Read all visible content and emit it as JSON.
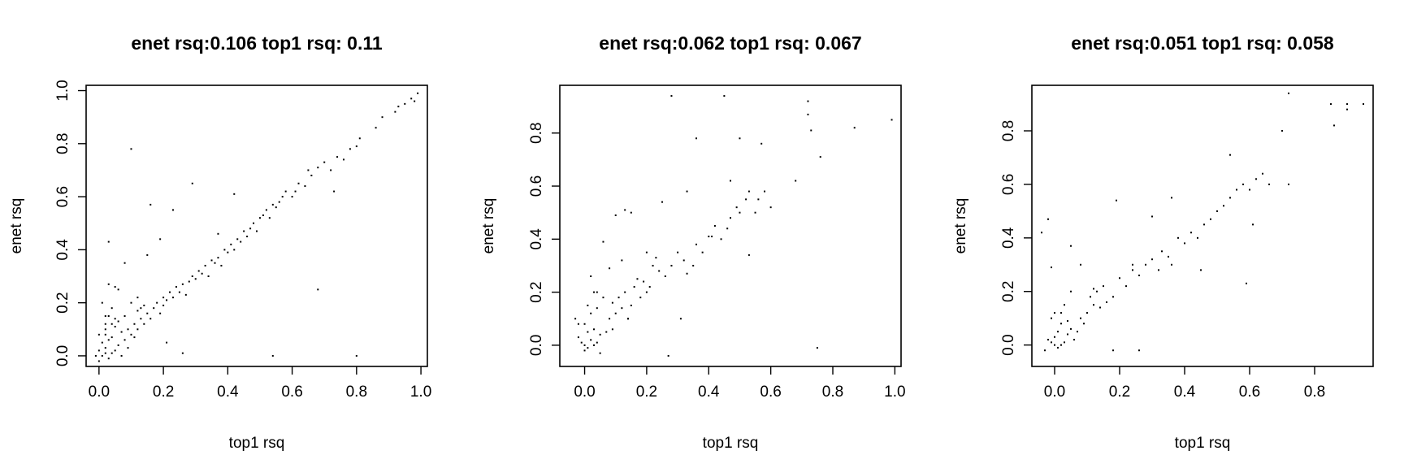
{
  "chart_data": [
    {
      "type": "scatter",
      "title": "enet rsq:0.106 top1 rsq: 0.11",
      "xlabel": "top1 rsq",
      "ylabel": "enet rsq",
      "xlim": [
        -0.04,
        1.02
      ],
      "ylim": [
        -0.04,
        1.02
      ],
      "xticks": [
        0.0,
        0.2,
        0.4,
        0.6,
        0.8,
        1.0
      ],
      "yticks": [
        0.0,
        0.2,
        0.4,
        0.6,
        0.8,
        1.0
      ],
      "xtick_labels": [
        "0.0",
        "0.2",
        "0.4",
        "0.6",
        "0.8",
        "1.0"
      ],
      "ytick_labels": [
        "0.0",
        "0.2",
        "0.4",
        "0.6",
        "0.8",
        "1.0"
      ],
      "grid": false,
      "series": [
        {
          "x": [
            0.01,
            0.02,
            0.0,
            0.03,
            -0.01,
            0.02,
            0.04,
            0.01,
            0.05,
            0.03,
            0.0,
            0.02,
            0.06,
            0.04,
            0.02,
            0.03,
            0.07,
            0.05,
            0.08,
            0.06,
            0.04,
            0.09,
            0.1,
            0.08,
            0.11,
            0.12,
            0.1,
            0.13,
            0.14,
            0.12,
            0.15,
            0.16,
            0.14,
            0.17,
            0.18,
            0.2,
            0.19,
            0.21,
            0.22,
            0.2,
            0.23,
            0.24,
            0.25,
            0.26,
            0.27,
            0.28,
            0.29,
            0.3,
            0.31,
            0.32,
            0.33,
            0.34,
            0.35,
            0.36,
            0.37,
            0.38,
            0.39,
            0.4,
            0.41,
            0.42,
            0.43,
            0.44,
            0.45,
            0.46,
            0.47,
            0.48,
            0.49,
            0.5,
            0.51,
            0.52,
            0.53,
            0.54,
            0.55,
            0.56,
            0.57,
            0.58,
            0.6,
            0.61,
            0.62,
            0.64,
            0.65,
            0.66,
            0.68,
            0.7,
            0.72,
            0.74,
            0.76,
            0.78,
            0.8,
            0.81,
            0.86,
            0.88,
            0.92,
            0.93,
            0.95,
            0.97,
            0.98,
            0.99,
            0.1,
            0.03,
            0.16,
            0.29,
            0.68,
            0.54,
            0.8,
            0.73,
            0.42,
            0.23,
            0.19,
            0.37,
            0.05,
            0.08,
            0.12,
            0.15,
            0.21,
            0.26,
            0.02,
            0.07,
            0.01,
            0.0,
            0.04,
            0.06,
            0.09,
            0.11,
            0.13,
            0.02,
            0.03,
            0.05
          ],
          "y": [
            0.0,
            0.01,
            0.02,
            -0.01,
            0.0,
            0.03,
            0.01,
            0.05,
            0.02,
            0.06,
            0.08,
            0.1,
            0.04,
            0.07,
            0.12,
            0.15,
            0.09,
            0.11,
            0.06,
            0.13,
            0.18,
            0.1,
            0.08,
            0.15,
            0.12,
            0.1,
            0.2,
            0.14,
            0.12,
            0.17,
            0.16,
            0.14,
            0.19,
            0.18,
            0.2,
            0.22,
            0.16,
            0.21,
            0.24,
            0.19,
            0.22,
            0.26,
            0.24,
            0.27,
            0.23,
            0.28,
            0.3,
            0.29,
            0.32,
            0.31,
            0.34,
            0.3,
            0.36,
            0.35,
            0.37,
            0.34,
            0.4,
            0.39,
            0.42,
            0.4,
            0.44,
            0.43,
            0.47,
            0.45,
            0.48,
            0.5,
            0.47,
            0.52,
            0.53,
            0.55,
            0.52,
            0.57,
            0.56,
            0.58,
            0.6,
            0.62,
            0.6,
            0.62,
            0.65,
            0.64,
            0.7,
            0.68,
            0.71,
            0.73,
            0.7,
            0.75,
            0.74,
            0.78,
            0.79,
            0.82,
            0.86,
            0.9,
            0.92,
            0.94,
            0.95,
            0.97,
            0.96,
            0.99,
            0.78,
            0.43,
            0.57,
            0.65,
            0.25,
            0.0,
            0.0,
            0.62,
            0.61,
            0.55,
            0.44,
            0.46,
            0.26,
            0.35,
            0.22,
            0.38,
            0.05,
            0.01,
            0.15,
            0.0,
            0.2,
            -0.02,
            0.12,
            0.25,
            0.03,
            0.07,
            0.18,
            0.08,
            0.27,
            0.14
          ]
        }
      ]
    },
    {
      "type": "scatter",
      "title": "enet rsq:0.062 top1 rsq: 0.067",
      "xlabel": "top1 rsq",
      "ylabel": "enet rsq",
      "xlim": [
        -0.08,
        1.02
      ],
      "ylim": [
        -0.08,
        0.98
      ],
      "xticks": [
        0.0,
        0.2,
        0.4,
        0.6,
        0.8,
        1.0
      ],
      "yticks": [
        0.0,
        0.2,
        0.4,
        0.6,
        0.8
      ],
      "xtick_labels": [
        "0.0",
        "0.2",
        "0.4",
        "0.6",
        "0.8",
        "1.0"
      ],
      "ytick_labels": [
        "0.0",
        "0.2",
        "0.4",
        "0.6",
        "0.8"
      ],
      "grid": false,
      "series": [
        {
          "x": [
            0.0,
            0.01,
            -0.01,
            0.02,
            0.0,
            0.03,
            -0.02,
            0.01,
            0.04,
            0.0,
            -0.03,
            0.02,
            0.05,
            0.01,
            0.03,
            0.06,
            0.08,
            0.04,
            0.07,
            0.1,
            0.09,
            0.12,
            0.11,
            0.14,
            0.13,
            0.16,
            0.15,
            0.18,
            0.17,
            0.2,
            0.19,
            0.22,
            0.21,
            0.24,
            0.23,
            0.26,
            0.28,
            0.3,
            0.32,
            0.33,
            0.35,
            0.36,
            0.38,
            0.4,
            0.42,
            0.44,
            0.46,
            0.47,
            0.49,
            0.5,
            0.52,
            0.53,
            0.55,
            0.56,
            0.58,
            0.6,
            0.28,
            0.45,
            0.72,
            0.72,
            0.99,
            0.87,
            0.73,
            0.36,
            0.5,
            0.57,
            0.76,
            0.68,
            0.47,
            0.41,
            0.53,
            0.1,
            0.13,
            0.15,
            0.33,
            0.06,
            0.02,
            0.25,
            0.31,
            0.75,
            0.12,
            0.05,
            0.03,
            0.08,
            0.2,
            0.27,
            -0.02,
            0.04,
            0.09,
            0.14
          ],
          "y": [
            0.0,
            -0.01,
            0.01,
            0.02,
            -0.02,
            0.0,
            0.03,
            0.05,
            0.01,
            0.08,
            0.1,
            0.12,
            0.04,
            0.15,
            0.06,
            0.18,
            0.1,
            0.2,
            0.05,
            0.12,
            0.16,
            0.14,
            0.18,
            0.1,
            0.2,
            0.22,
            0.15,
            0.18,
            0.25,
            0.2,
            0.24,
            0.3,
            0.22,
            0.28,
            0.33,
            0.26,
            0.3,
            0.35,
            0.32,
            0.27,
            0.3,
            0.38,
            0.35,
            0.41,
            0.45,
            0.4,
            0.44,
            0.48,
            0.52,
            0.5,
            0.55,
            0.58,
            0.5,
            0.55,
            0.58,
            0.52,
            0.94,
            0.94,
            0.92,
            0.87,
            0.85,
            0.82,
            0.81,
            0.78,
            0.78,
            0.76,
            0.71,
            0.62,
            0.62,
            0.41,
            0.34,
            0.49,
            0.51,
            0.5,
            0.58,
            0.39,
            0.26,
            0.54,
            0.1,
            -0.01,
            0.32,
            -0.03,
            0.2,
            0.29,
            0.35,
            -0.04,
            0.08,
            0.14,
            0.06,
            0.1
          ]
        }
      ]
    },
    {
      "type": "scatter",
      "title": "enet rsq:0.051 top1 rsq: 0.058",
      "xlabel": "top1 rsq",
      "ylabel": "enet rsq",
      "xlim": [
        -0.07,
        0.98
      ],
      "ylim": [
        -0.08,
        0.97
      ],
      "xticks": [
        0.0,
        0.2,
        0.4,
        0.6,
        0.8
      ],
      "yticks": [
        0.0,
        0.2,
        0.4,
        0.6,
        0.8
      ],
      "xtick_labels": [
        "0.0",
        "0.2",
        "0.4",
        "0.6",
        "0.8"
      ],
      "ytick_labels": [
        "0.0",
        "0.2",
        "0.4",
        "0.6",
        "0.8"
      ],
      "grid": false,
      "series": [
        {
          "x": [
            0.0,
            -0.01,
            0.01,
            -0.02,
            0.02,
            0.0,
            -0.03,
            0.01,
            0.03,
            0.02,
            -0.01,
            0.04,
            0.05,
            0.0,
            0.06,
            0.03,
            0.07,
            0.08,
            0.05,
            0.1,
            0.09,
            0.12,
            0.11,
            0.14,
            0.13,
            0.16,
            0.15,
            0.18,
            0.2,
            0.22,
            0.24,
            0.26,
            0.28,
            0.3,
            0.32,
            0.33,
            0.35,
            0.36,
            0.38,
            0.4,
            0.42,
            0.44,
            0.46,
            0.48,
            0.5,
            0.52,
            0.54,
            0.56,
            0.58,
            0.6,
            0.62,
            0.64,
            0.66,
            0.7,
            0.72,
            0.72,
            0.85,
            0.86,
            0.9,
            0.9,
            0.95,
            0.54,
            0.59,
            0.61,
            0.45,
            0.36,
            0.3,
            0.19,
            0.08,
            -0.04,
            -0.01,
            -0.02,
            0.05,
            0.24,
            0.26,
            0.18,
            0.12,
            0.02,
            0.04
          ],
          "y": [
            0.0,
            0.01,
            -0.01,
            0.02,
            0.0,
            0.03,
            -0.02,
            0.05,
            0.01,
            0.08,
            0.1,
            0.04,
            0.06,
            0.12,
            0.02,
            0.15,
            0.05,
            0.1,
            0.2,
            0.12,
            0.08,
            0.15,
            0.18,
            0.14,
            0.2,
            0.16,
            0.22,
            0.18,
            0.25,
            0.22,
            0.28,
            0.26,
            0.3,
            0.32,
            0.28,
            0.35,
            0.33,
            0.3,
            0.4,
            0.38,
            0.42,
            0.4,
            0.45,
            0.47,
            0.5,
            0.52,
            0.55,
            0.58,
            0.6,
            0.58,
            0.62,
            0.64,
            0.6,
            0.8,
            0.6,
            0.94,
            0.9,
            0.82,
            0.9,
            0.88,
            0.9,
            0.71,
            0.23,
            0.45,
            0.28,
            0.55,
            0.48,
            0.54,
            0.3,
            0.42,
            0.29,
            0.47,
            0.37,
            0.3,
            -0.02,
            -0.02,
            0.21,
            0.12,
            0.09
          ]
        }
      ]
    }
  ]
}
